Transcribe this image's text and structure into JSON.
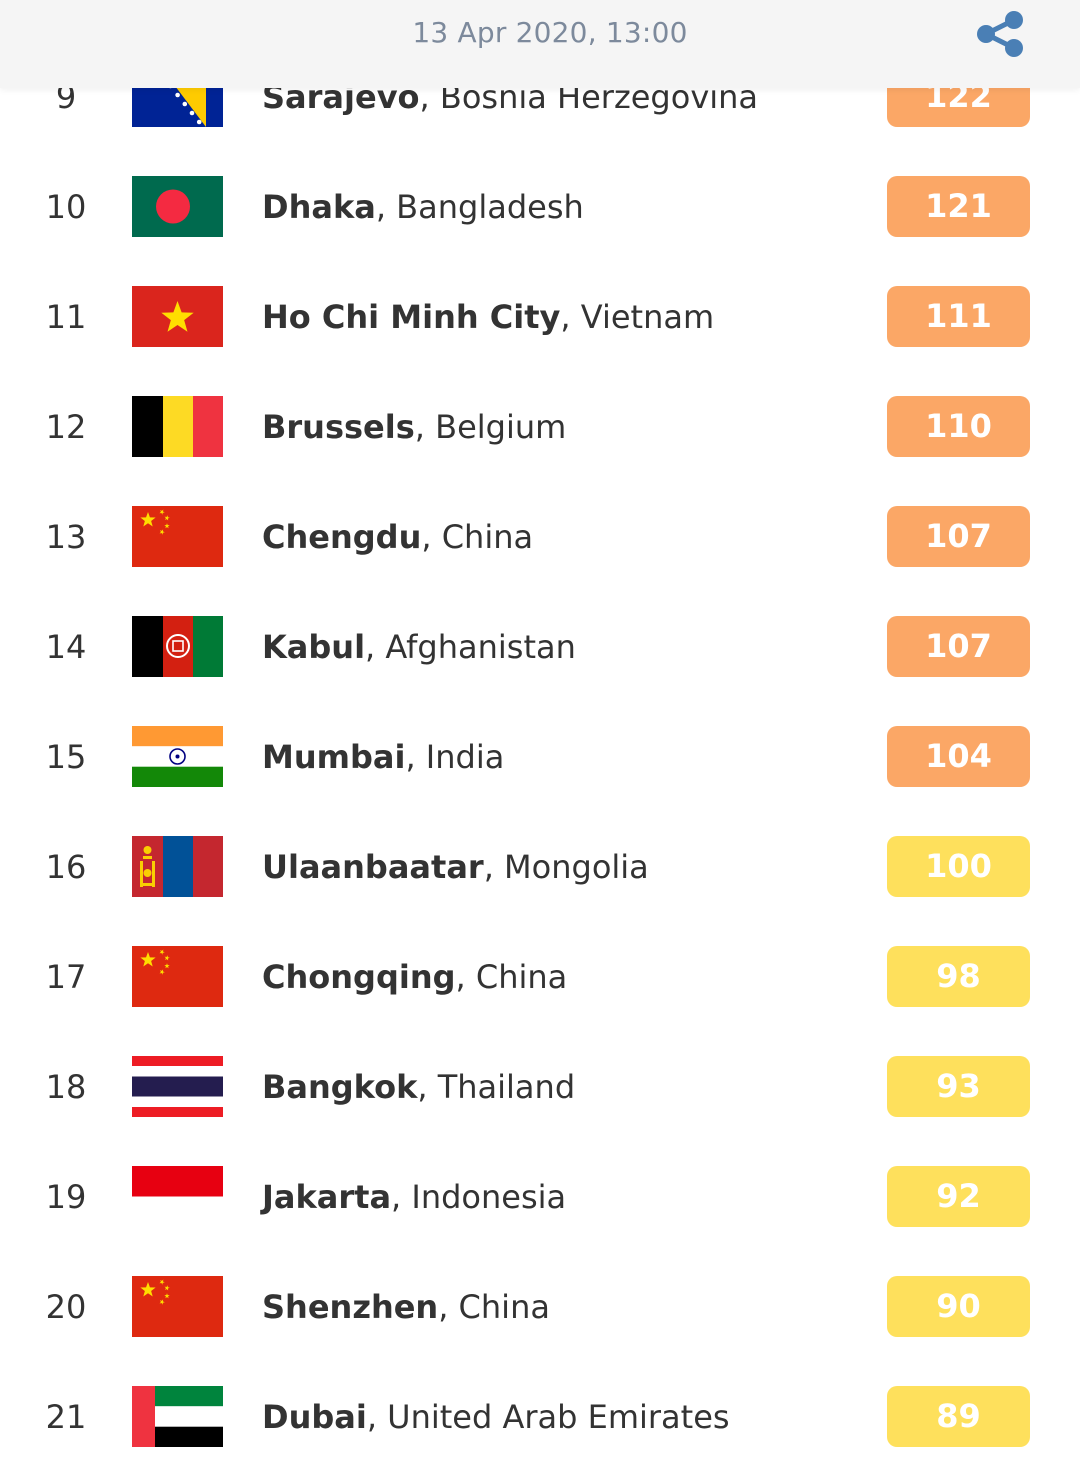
{
  "header": {
    "timestamp": "13 Apr 2020, 13:00",
    "share_icon": "share-icon"
  },
  "colors": {
    "unhealthy_sensitive": "#fba766",
    "moderate": "#fee05c"
  },
  "rows": [
    {
      "rank": "9",
      "city": "Sarajevo",
      "country": ", Bosnia Herzegovina",
      "aqi": "122",
      "flag": "bosnia-flag",
      "level": "unhealthy_sensitive"
    },
    {
      "rank": "10",
      "city": "Dhaka",
      "country": ", Bangladesh",
      "aqi": "121",
      "flag": "bangladesh-flag",
      "level": "unhealthy_sensitive"
    },
    {
      "rank": "11",
      "city": "Ho Chi Minh City",
      "country": ", Vietnam",
      "aqi": "111",
      "flag": "vietnam-flag",
      "level": "unhealthy_sensitive"
    },
    {
      "rank": "12",
      "city": "Brussels",
      "country": ", Belgium",
      "aqi": "110",
      "flag": "belgium-flag",
      "level": "unhealthy_sensitive"
    },
    {
      "rank": "13",
      "city": "Chengdu",
      "country": ", China",
      "aqi": "107",
      "flag": "china-flag",
      "level": "unhealthy_sensitive"
    },
    {
      "rank": "14",
      "city": "Kabul",
      "country": ", Afghanistan",
      "aqi": "107",
      "flag": "afghanistan-flag",
      "level": "unhealthy_sensitive"
    },
    {
      "rank": "15",
      "city": "Mumbai",
      "country": ", India",
      "aqi": "104",
      "flag": "india-flag",
      "level": "unhealthy_sensitive"
    },
    {
      "rank": "16",
      "city": "Ulaanbaatar",
      "country": ", Mongolia",
      "aqi": "100",
      "flag": "mongolia-flag",
      "level": "moderate"
    },
    {
      "rank": "17",
      "city": "Chongqing",
      "country": ", China",
      "aqi": "98",
      "flag": "china-flag",
      "level": "moderate"
    },
    {
      "rank": "18",
      "city": "Bangkok",
      "country": ", Thailand",
      "aqi": "93",
      "flag": "thailand-flag",
      "level": "moderate"
    },
    {
      "rank": "19",
      "city": "Jakarta",
      "country": ", Indonesia",
      "aqi": "92",
      "flag": "indonesia-flag",
      "level": "moderate"
    },
    {
      "rank": "20",
      "city": "Shenzhen",
      "country": ", China",
      "aqi": "90",
      "flag": "china-flag",
      "level": "moderate"
    },
    {
      "rank": "21",
      "city": "Dubai",
      "country": ", United Arab Emirates",
      "aqi": "89",
      "flag": "uae-flag",
      "level": "moderate"
    }
  ]
}
